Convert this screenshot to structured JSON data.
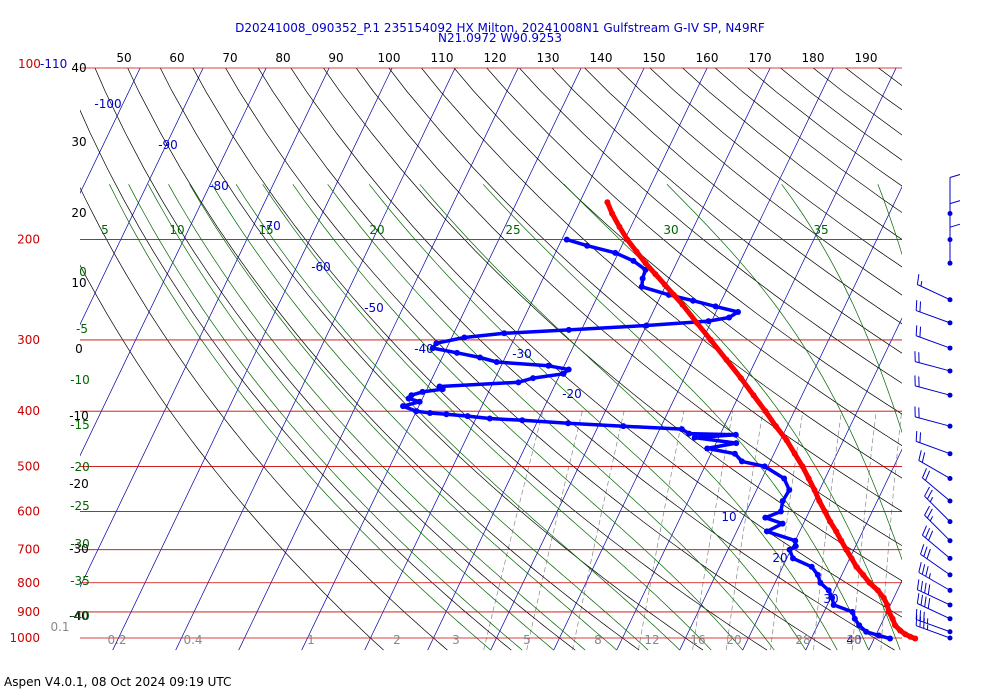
{
  "title": {
    "line1": "D20241008_090352_P.1 235154092 HX Milton, 20241008N1 Gulfstream G-IV SP, N49RF",
    "line2": "N21.0972 W90.9253"
  },
  "footer": "Aspen V4.0.1, 08 Oct 2024  09:19 UTC",
  "colors": {
    "isobar": "#cc0000",
    "isotherm": "#0000aa",
    "dry_adiabat": "#000000",
    "moist_adiabat": "#006600",
    "mixing_ratio": "#888888",
    "temperature": "#ff0000",
    "dewpoint": "#0000ff",
    "wind_barb": "#0000cc"
  },
  "chart_data": {
    "type": "skew-t",
    "title": "D20241008_090352_P.1 235154092 HX Milton, 20241008N1 Gulfstream G-IV SP, N49RF",
    "subtitle": "N21.0972 W90.9253",
    "pressure_range_hpa": [
      1000,
      100
    ],
    "pressure_labels": [
      "100-110",
      "200",
      "300",
      "400",
      "500",
      "600",
      "700",
      "800",
      "900",
      "1000"
    ],
    "pressure_levels": [
      100,
      200,
      300,
      400,
      500,
      600,
      700,
      800,
      900,
      1000
    ],
    "top_scale_labels": [
      "50",
      "60",
      "70",
      "80",
      "90",
      "100",
      "110",
      "120",
      "130",
      "140",
      "150",
      "160",
      "170",
      "180",
      "190"
    ],
    "left_scale_labels": [
      "40",
      "30",
      "20",
      "10",
      "0",
      "-10",
      "-20",
      "-30",
      "-40"
    ],
    "isotherm_labels": [
      "-100",
      "-90",
      "-80",
      "-70",
      "-60",
      "-50",
      "-40",
      "-30",
      "-20",
      "-10",
      "10",
      "20",
      "30",
      "40"
    ],
    "moist_adiabat_labels": [
      "5",
      "10",
      "15",
      "20",
      "25",
      "30",
      "35",
      "0",
      "-5",
      "-10",
      "-15",
      "-20",
      "-25",
      "-30",
      "-35",
      "-40"
    ],
    "mixing_ratio_labels": [
      "0.1",
      "0.2",
      "0.4",
      "1",
      "2",
      "3",
      "5",
      "8",
      "12",
      "16",
      "20",
      "28",
      "36"
    ],
    "temperature_profile": [
      {
        "p": 1002,
        "t": 26.5
      },
      {
        "p": 995,
        "t": 25.6
      },
      {
        "p": 985,
        "t": 24.6
      },
      {
        "p": 970,
        "t": 23.5
      },
      {
        "p": 950,
        "t": 22.3
      },
      {
        "p": 925,
        "t": 21.4
      },
      {
        "p": 900,
        "t": 20.3
      },
      {
        "p": 875,
        "t": 19.5
      },
      {
        "p": 850,
        "t": 18.4
      },
      {
        "p": 825,
        "t": 16.9
      },
      {
        "p": 800,
        "t": 15.0
      },
      {
        "p": 775,
        "t": 13.4
      },
      {
        "p": 750,
        "t": 11.7
      },
      {
        "p": 725,
        "t": 10.3
      },
      {
        "p": 700,
        "t": 8.8
      },
      {
        "p": 675,
        "t": 7.3
      },
      {
        "p": 650,
        "t": 5.8
      },
      {
        "p": 625,
        "t": 4.1
      },
      {
        "p": 600,
        "t": 2.5
      },
      {
        "p": 575,
        "t": 0.8
      },
      {
        "p": 550,
        "t": -0.8
      },
      {
        "p": 525,
        "t": -2.6
      },
      {
        "p": 500,
        "t": -4.5
      },
      {
        "p": 475,
        "t": -6.7
      },
      {
        "p": 450,
        "t": -9.0
      },
      {
        "p": 425,
        "t": -11.8
      },
      {
        "p": 400,
        "t": -14.6
      },
      {
        "p": 375,
        "t": -17.7
      },
      {
        "p": 350,
        "t": -21.0
      },
      {
        "p": 325,
        "t": -24.7
      },
      {
        "p": 300,
        "t": -28.7
      },
      {
        "p": 280,
        "t": -32.2
      },
      {
        "p": 260,
        "t": -35.9
      },
      {
        "p": 250,
        "t": -38.0
      },
      {
        "p": 240,
        "t": -40.2
      },
      {
        "p": 230,
        "t": -42.5
      },
      {
        "p": 220,
        "t": -44.9
      },
      {
        "p": 210,
        "t": -47.2
      },
      {
        "p": 200,
        "t": -49.6
      },
      {
        "p": 190,
        "t": -51.8
      },
      {
        "p": 180,
        "t": -54.0
      },
      {
        "p": 172,
        "t": -55.6
      }
    ],
    "dewpoint_profile": [
      {
        "p": 1002,
        "td": 22.5
      },
      {
        "p": 990,
        "td": 20.5
      },
      {
        "p": 975,
        "td": 18.2
      },
      {
        "p": 950,
        "td": 16.6
      },
      {
        "p": 925,
        "td": 15.4
      },
      {
        "p": 900,
        "td": 14.5
      },
      {
        "p": 875,
        "td": 11.0
      },
      {
        "p": 850,
        "td": 10.2
      },
      {
        "p": 825,
        "td": 9.1
      },
      {
        "p": 800,
        "td": 7.2
      },
      {
        "p": 775,
        "td": 6.2
      },
      {
        "p": 750,
        "td": 4.6
      },
      {
        "p": 725,
        "td": 1.0
      },
      {
        "p": 700,
        "td": -0.2
      },
      {
        "p": 690,
        "td": 0.5
      },
      {
        "p": 675,
        "td": 0.0
      },
      {
        "p": 650,
        "td": -5.2
      },
      {
        "p": 630,
        "td": -3.3
      },
      {
        "p": 615,
        "td": -6.5
      },
      {
        "p": 600,
        "td": -4.5
      },
      {
        "p": 575,
        "td": -5.0
      },
      {
        "p": 550,
        "td": -4.8
      },
      {
        "p": 525,
        "td": -6.5
      },
      {
        "p": 500,
        "td": -10.5
      },
      {
        "p": 490,
        "td": -14.5
      },
      {
        "p": 475,
        "td": -16.2
      },
      {
        "p": 465,
        "td": -21.0
      },
      {
        "p": 455,
        "td": -16.8
      },
      {
        "p": 445,
        "td": -23.8
      },
      {
        "p": 440,
        "td": -17.5
      },
      {
        "p": 438,
        "td": -25.0
      },
      {
        "p": 430,
        "td": -26.5
      },
      {
        "p": 425,
        "td": -36.0
      },
      {
        "p": 420,
        "td": -45.0
      },
      {
        "p": 415,
        "td": -52.5
      },
      {
        "p": 412,
        "td": -57.8
      },
      {
        "p": 408,
        "td": -61.5
      },
      {
        "p": 405,
        "td": -65.0
      },
      {
        "p": 403,
        "td": -67.7
      },
      {
        "p": 400,
        "td": -70.0
      },
      {
        "p": 392,
        "td": -72.5
      },
      {
        "p": 385,
        "td": -70.2
      },
      {
        "p": 380,
        "td": -72.2
      },
      {
        "p": 375,
        "td": -72.0
      },
      {
        "p": 370,
        "td": -70.5
      },
      {
        "p": 366,
        "td": -67.5
      },
      {
        "p": 362,
        "td": -68.2
      },
      {
        "p": 356,
        "td": -56.0
      },
      {
        "p": 350,
        "td": -54.0
      },
      {
        "p": 344,
        "td": -49.5
      },
      {
        "p": 338,
        "td": -49.0
      },
      {
        "p": 333,
        "td": -52.5
      },
      {
        "p": 328,
        "td": -61.0
      },
      {
        "p": 322,
        "td": -64.0
      },
      {
        "p": 316,
        "td": -68.0
      },
      {
        "p": 310,
        "td": -72.2
      },
      {
        "p": 304,
        "td": -72.0
      },
      {
        "p": 297,
        "td": -68.0
      },
      {
        "p": 292,
        "td": -62.0
      },
      {
        "p": 288,
        "td": -52.0
      },
      {
        "p": 283,
        "td": -40.0
      },
      {
        "p": 278,
        "td": -30.5
      },
      {
        "p": 274,
        "td": -27.5
      },
      {
        "p": 268,
        "td": -26.5
      },
      {
        "p": 262,
        "td": -30.5
      },
      {
        "p": 256,
        "td": -34.5
      },
      {
        "p": 250,
        "td": -38.8
      },
      {
        "p": 242,
        "td": -43.7
      },
      {
        "p": 234,
        "td": -44.2
      },
      {
        "p": 226,
        "td": -44.4
      },
      {
        "p": 218,
        "td": -47.0
      },
      {
        "p": 211,
        "td": -50.5
      },
      {
        "p": 205,
        "td": -55.5
      },
      {
        "p": 200,
        "td": -59.2
      }
    ],
    "wind_barbs": [
      {
        "p": 1000,
        "speed_kt": 35,
        "dir_deg": 290
      },
      {
        "p": 975,
        "speed_kt": 35,
        "dir_deg": 290
      },
      {
        "p": 925,
        "speed_kt": 40,
        "dir_deg": 295
      },
      {
        "p": 875,
        "speed_kt": 40,
        "dir_deg": 295
      },
      {
        "p": 825,
        "speed_kt": 35,
        "dir_deg": 300
      },
      {
        "p": 775,
        "speed_kt": 30,
        "dir_deg": 305
      },
      {
        "p": 725,
        "speed_kt": 30,
        "dir_deg": 310
      },
      {
        "p": 675,
        "speed_kt": 25,
        "dir_deg": 315
      },
      {
        "p": 625,
        "speed_kt": 25,
        "dir_deg": 315
      },
      {
        "p": 575,
        "speed_kt": 20,
        "dir_deg": 310
      },
      {
        "p": 525,
        "speed_kt": 20,
        "dir_deg": 300
      },
      {
        "p": 475,
        "speed_kt": 20,
        "dir_deg": 290
      },
      {
        "p": 425,
        "speed_kt": 20,
        "dir_deg": 285
      },
      {
        "p": 375,
        "speed_kt": 20,
        "dir_deg": 285
      },
      {
        "p": 340,
        "speed_kt": 20,
        "dir_deg": 285
      },
      {
        "p": 310,
        "speed_kt": 20,
        "dir_deg": 290
      },
      {
        "p": 280,
        "speed_kt": 20,
        "dir_deg": 290
      },
      {
        "p": 255,
        "speed_kt": 15,
        "dir_deg": 295
      },
      {
        "p": 220,
        "speed_kt": 10,
        "dir_deg": 0
      },
      {
        "p": 200,
        "speed_kt": 10,
        "dir_deg": 0
      },
      {
        "p": 180,
        "speed_kt": 10,
        "dir_deg": 0
      }
    ]
  }
}
